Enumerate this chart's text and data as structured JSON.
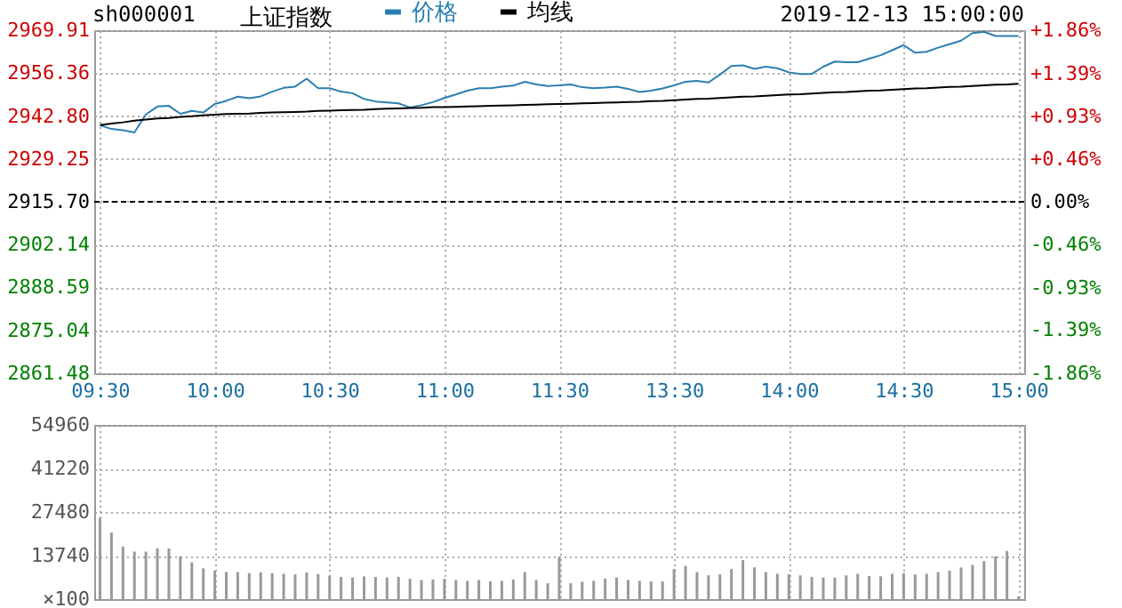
{
  "chart_data": [
    {
      "type": "line",
      "title": "上证指数",
      "annotations": [
        "sh000001",
        "2019-12-13 15:00:00"
      ],
      "categories": [
        "09:30",
        null,
        null,
        null,
        null,
        null,
        null,
        null,
        null,
        null,
        "10:00",
        null,
        null,
        null,
        null,
        null,
        null,
        null,
        null,
        null,
        "10:30",
        null,
        null,
        null,
        null,
        null,
        null,
        null,
        null,
        null,
        "11:00",
        null,
        null,
        null,
        null,
        null,
        null,
        null,
        null,
        null,
        "11:30",
        null,
        null,
        null,
        null,
        null,
        null,
        null,
        null,
        null,
        "13:30",
        null,
        null,
        null,
        null,
        null,
        null,
        null,
        null,
        null,
        "14:00",
        null,
        null,
        null,
        null,
        null,
        null,
        null,
        null,
        null,
        "14:30",
        null,
        null,
        null,
        null,
        null,
        null,
        null,
        null,
        null,
        "15:00"
      ],
      "series": [
        {
          "name": "价格",
          "color": "#2b7fb0",
          "values": [
            2939.9,
            2938.7,
            2938.3,
            2937.6,
            2943.3,
            2945.8,
            2946.0,
            2943.5,
            2944.4,
            2943.9,
            2946.6,
            2947.6,
            2948.9,
            2948.4,
            2949.0,
            2950.5,
            2951.7,
            2952.1,
            2954.6,
            2951.6,
            2951.6,
            2950.5,
            2950.0,
            2948.2,
            2947.4,
            2947.1,
            2946.8,
            2945.5,
            2946.2,
            2947.2,
            2948.5,
            2949.6,
            2950.8,
            2951.6,
            2951.6,
            2952.1,
            2952.4,
            2953.6,
            2952.8,
            2952.3,
            2952.5,
            2952.8,
            2951.9,
            2951.6,
            2951.8,
            2952.1,
            2951.4,
            2950.4,
            2950.8,
            2951.5,
            2952.5,
            2953.6,
            2953.9,
            2953.4,
            2955.9,
            2958.6,
            2958.8,
            2957.7,
            2958.4,
            2957.9,
            2956.6,
            2956.1,
            2956.1,
            2958.4,
            2960.0,
            2959.8,
            2959.8,
            2960.9,
            2962.0,
            2963.6,
            2965.2,
            2962.8,
            2963.1,
            2964.4,
            2965.5,
            2966.6,
            2969.0,
            2969.4,
            2968.1,
            2968.1,
            2968.1
          ]
        },
        {
          "name": "均线",
          "color": "#000000",
          "values": [
            2939.9,
            2940.4,
            2940.8,
            2941.3,
            2941.7,
            2942.0,
            2942.2,
            2942.5,
            2942.7,
            2943.0,
            2943.2,
            2943.4,
            2943.5,
            2943.6,
            2943.8,
            2943.9,
            2944.0,
            2944.1,
            2944.2,
            2944.4,
            2944.5,
            2944.6,
            2944.7,
            2944.8,
            2945.0,
            2945.1,
            2945.2,
            2945.3,
            2945.4,
            2945.6,
            2945.6,
            2945.7,
            2945.8,
            2945.9,
            2946.0,
            2946.1,
            2946.2,
            2946.3,
            2946.4,
            2946.5,
            2946.6,
            2946.7,
            2946.8,
            2946.9,
            2947.0,
            2947.1,
            2947.2,
            2947.3,
            2947.5,
            2947.6,
            2947.8,
            2948.0,
            2948.2,
            2948.3,
            2948.5,
            2948.7,
            2948.9,
            2949.0,
            2949.2,
            2949.4,
            2949.6,
            2949.7,
            2949.9,
            2950.1,
            2950.3,
            2950.4,
            2950.6,
            2950.8,
            2950.9,
            2951.1,
            2951.3,
            2951.5,
            2951.6,
            2951.8,
            2952.0,
            2952.1,
            2952.3,
            2952.5,
            2952.7,
            2952.8,
            2953.0
          ]
        }
      ],
      "ylim": [
        2861.48,
        2969.91
      ],
      "yticks": [
        2861.48,
        2875.04,
        2888.59,
        2902.14,
        {
          "value": 2915.7,
          "label": "2915.70"
        },
        2929.25,
        {
          "value": 2942.8,
          "label": "2942.80"
        },
        2956.36,
        2969.91
      ],
      "y2lim": [
        -1.86,
        1.86
      ],
      "y2ticks": [
        {
          "value": -1.86,
          "label": "-1.86%"
        },
        {
          "value": -1.39,
          "label": "-1.39%"
        },
        {
          "value": -0.93,
          "label": "-0.93%"
        },
        {
          "value": -0.46,
          "label": "-0.46%"
        },
        {
          "value": 0,
          "label": "0.00%"
        },
        {
          "value": 0.46,
          "label": "+0.46%"
        },
        {
          "value": 0.93,
          "label": "+0.93%"
        },
        {
          "value": 1.39,
          "label": "+1.39%"
        },
        {
          "value": 1.86,
          "label": "+1.86%"
        }
      ],
      "ref_lines": [
        {
          "axis": "y2",
          "value": 0,
          "color": "#000000",
          "line_style": "dashed"
        }
      ],
      "grid": true,
      "legend": "top"
    },
    {
      "type": "bar",
      "ylabel": "×100",
      "categories": [
        null,
        null,
        null,
        null,
        null,
        null,
        null,
        null,
        null,
        null,
        null,
        null,
        null,
        null,
        null,
        null,
        null,
        null,
        null,
        null,
        null,
        null,
        null,
        null,
        null,
        null,
        null,
        null,
        null,
        null,
        null,
        null,
        null,
        null,
        null,
        null,
        null,
        null,
        null,
        null,
        null,
        null,
        null,
        null,
        null,
        null,
        null,
        null,
        null,
        null,
        null,
        null,
        null,
        null,
        null,
        null,
        null,
        null,
        null,
        null,
        null,
        null,
        null,
        null,
        null,
        null,
        null,
        null,
        null,
        null,
        null,
        null,
        null,
        null,
        null,
        null,
        null,
        null,
        null,
        null,
        null
      ],
      "series": [
        {
          "color": "#999999",
          "values": [
            25500,
            21000,
            16600,
            15000,
            15000,
            16000,
            16000,
            13500,
            11600,
            9700,
            9000,
            8500,
            8500,
            8200,
            8400,
            8200,
            8000,
            7800,
            8400,
            7900,
            7400,
            7000,
            6800,
            7200,
            7000,
            6800,
            7000,
            6400,
            6000,
            6200,
            6400,
            6000,
            5800,
            6000,
            5600,
            5800,
            6200,
            8500,
            6000,
            5000,
            13400,
            5000,
            5500,
            5800,
            6500,
            6800,
            6000,
            5800,
            5600,
            5600,
            9500,
            10500,
            8500,
            7500,
            7800,
            9500,
            12300,
            10000,
            8500,
            8000,
            7800,
            7500,
            7000,
            6800,
            6800,
            7500,
            8000,
            7300,
            7200,
            8000,
            8200,
            7800,
            8000,
            8500,
            9000,
            10000,
            10800,
            12000,
            13500,
            15200,
            800
          ]
        }
      ],
      "ylim": [
        0,
        54960
      ],
      "yticks": [
        13740,
        27480,
        41220,
        54960
      ],
      "grid": true,
      "tick_labels": "y"
    }
  ]
}
